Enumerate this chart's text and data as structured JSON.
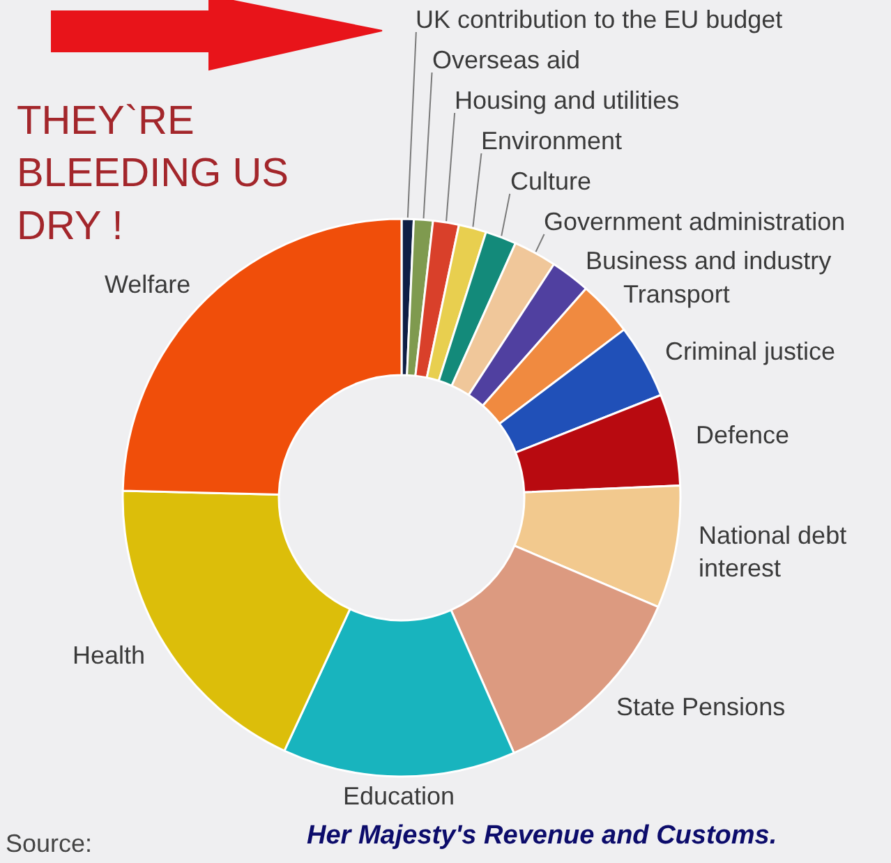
{
  "chart_data": {
    "type": "donut",
    "categories": [
      "UK contribution to the EU budget",
      "Overseas aid",
      "Housing and utilities",
      "Environment",
      "Culture",
      "Government administration",
      "Business and industry",
      "Transport",
      "Criminal justice",
      "Defence",
      "National debt\ninterest",
      "State Pensions",
      "Education",
      "Health",
      "Welfare"
    ],
    "values": [
      0.7,
      1.1,
      1.5,
      1.6,
      1.8,
      2.5,
      2.3,
      3.2,
      4.3,
      5.3,
      7.1,
      12.0,
      13.5,
      18.5,
      24.6
    ],
    "colors": [
      "#0f1f45",
      "#7f9a4f",
      "#d9402a",
      "#e8cf4f",
      "#138a7a",
      "#f0c79a",
      "#5040a0",
      "#f08a40",
      "#2050b8",
      "#b80a10",
      "#f2c98e",
      "#dc9a80",
      "#18b4be",
      "#dcbe0a",
      "#f04e0a"
    ],
    "annotations": [
      "THEY`RE\nBLEEDING US\nDRY !",
      "Source:",
      "Her Majesty's Revenue and Customs."
    ],
    "legend": false
  }
}
